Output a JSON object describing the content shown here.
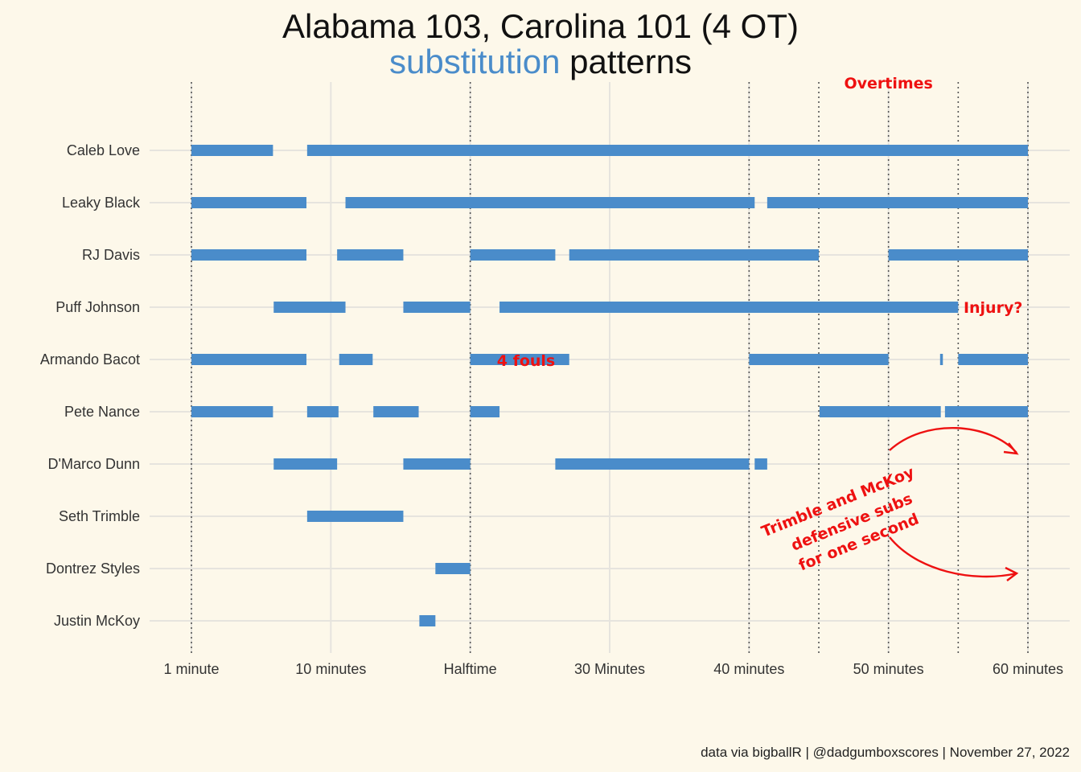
{
  "title": {
    "line1": "Alabama 103, Carolina 101 (4 OT)",
    "line2_highlight": "substitution",
    "line2_rest": " patterns",
    "highlight_color": "#4a8cca"
  },
  "caption": "data via bigballR | @dadgumboxscores | November 27, 2022",
  "colors": {
    "background": "#fdf8ea",
    "bar": "#4a8cca",
    "annotation": "#ee1111",
    "grid": "#e6e4de",
    "period_line": "#555555"
  },
  "chart_data": {
    "type": "timeline",
    "xlim": [
      1,
      61
    ],
    "x_ticks": [
      {
        "value": 1,
        "label": "1 minute"
      },
      {
        "value": 11,
        "label": "10 minutes"
      },
      {
        "value": 21,
        "label": "Halftime"
      },
      {
        "value": 31,
        "label": "30 Minutes"
      },
      {
        "value": 41,
        "label": "40 minutes"
      },
      {
        "value": 51,
        "label": "50 minutes"
      },
      {
        "value": 61,
        "label": "60 minutes"
      }
    ],
    "period_lines": [
      1,
      21,
      41,
      46,
      51,
      56,
      61
    ],
    "players": [
      {
        "name": "Caleb Love",
        "stints": [
          [
            1,
            6.85
          ],
          [
            9.3,
            61
          ]
        ]
      },
      {
        "name": "Leaky Black",
        "stints": [
          [
            1,
            9.25
          ],
          [
            12.05,
            41.4
          ],
          [
            42.3,
            61
          ]
        ]
      },
      {
        "name": "RJ Davis",
        "stints": [
          [
            1,
            9.25
          ],
          [
            11.45,
            16.2
          ],
          [
            21,
            27.1
          ],
          [
            28.1,
            46
          ],
          [
            51,
            61
          ]
        ]
      },
      {
        "name": "Puff Johnson",
        "stints": [
          [
            6.9,
            12.05
          ],
          [
            16.2,
            21
          ],
          [
            23.1,
            56
          ]
        ]
      },
      {
        "name": "Armando Bacot",
        "stints": [
          [
            1,
            9.25
          ],
          [
            11.6,
            14
          ],
          [
            21,
            28.1
          ],
          [
            41,
            51
          ],
          [
            54.7,
            54.9
          ],
          [
            56,
            61
          ]
        ]
      },
      {
        "name": "Pete Nance",
        "stints": [
          [
            1,
            6.85
          ],
          [
            9.3,
            11.55
          ],
          [
            14.05,
            17.3
          ],
          [
            21,
            23.1
          ],
          [
            46.05,
            54.75
          ],
          [
            55.05,
            61
          ]
        ]
      },
      {
        "name": "D'Marco Dunn",
        "stints": [
          [
            6.9,
            11.45
          ],
          [
            16.2,
            21
          ],
          [
            27.1,
            41
          ],
          [
            41.4,
            42.3
          ]
        ]
      },
      {
        "name": "Seth Trimble",
        "stints": [
          [
            9.3,
            16.2
          ]
        ]
      },
      {
        "name": "Dontrez Styles",
        "stints": [
          [
            18.5,
            21
          ]
        ]
      },
      {
        "name": "Justin McKoy",
        "stints": [
          [
            17.35,
            18.5
          ]
        ]
      }
    ],
    "annotations": [
      {
        "text": "Overtimes",
        "x": 51,
        "player": null
      },
      {
        "text": "Injury?",
        "x": 58.5,
        "player": "Puff Johnson"
      },
      {
        "text": "4 fouls",
        "x": 25,
        "player": "Armando Bacot"
      },
      {
        "text": "Trimble and McKoy",
        "x": 47.5
      },
      {
        "text": "defensive subs",
        "x": 48.5
      },
      {
        "text": "for one second",
        "x": 49
      }
    ]
  }
}
